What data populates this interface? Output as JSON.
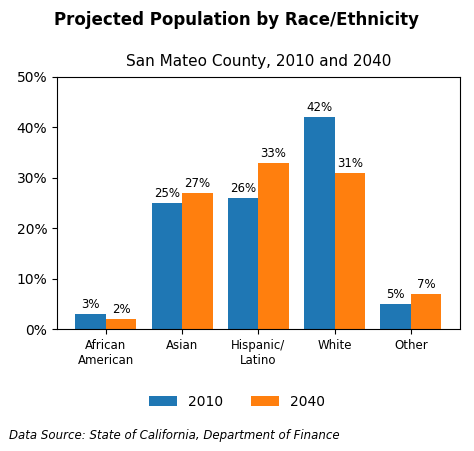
{
  "chart_data": {
    "type": "bar",
    "title": "Projected Population by Race/Ethnicity",
    "subtitle": "San Mateo County, 2010 and 2040",
    "annotation": "Data Source: State of California, Department of Finance",
    "categories": [
      "African\nAmerican",
      "Asian",
      "Hispanic/\nLatino",
      "White",
      "Other"
    ],
    "series": [
      {
        "name": "2010",
        "values": [
          3,
          25,
          26,
          42,
          5
        ],
        "value_labels": [
          "3%",
          "25%",
          "26%",
          "42%",
          "5%"
        ]
      },
      {
        "name": "2040",
        "values": [
          2,
          27,
          33,
          31,
          7
        ],
        "value_labels": [
          "2%",
          "27%",
          "33%",
          "31%",
          "7%"
        ]
      }
    ],
    "ylim": [
      0,
      50
    ],
    "yticks": [
      {
        "value": 0,
        "label": "0%"
      },
      {
        "value": 10,
        "label": "10%"
      },
      {
        "value": 20,
        "label": "20%"
      },
      {
        "value": 30,
        "label": "30%"
      },
      {
        "value": 40,
        "label": "40%"
      },
      {
        "value": 50,
        "label": "50%"
      }
    ],
    "grid": false,
    "legend": "lower center",
    "data_labels": true
  }
}
